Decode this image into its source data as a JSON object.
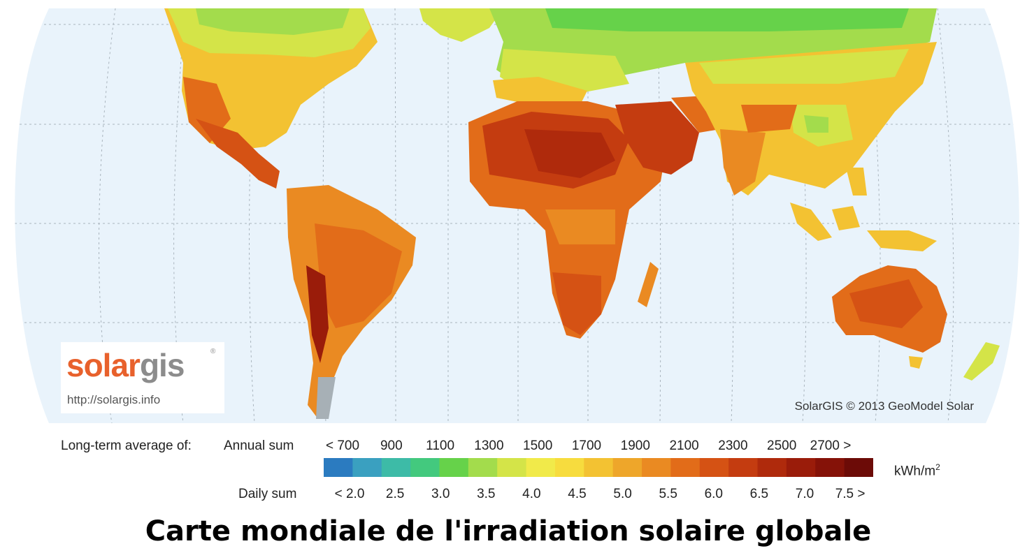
{
  "title": "Carte mondiale de l'irradiation solaire globale",
  "logo": {
    "brand_a": "solar",
    "brand_b": "gis",
    "registered": "®",
    "url": "http://solargis.info"
  },
  "credit": "SolarGIS © 2013 GeoModel Solar",
  "legend": {
    "prefix": "Long-term average of:",
    "annual_label": "Annual sum",
    "daily_label": "Daily sum",
    "unit": "kWh/m",
    "unit_sup": "2",
    "annual_ticks": [
      "< 700",
      "900",
      "1100",
      "1300",
      "1500",
      "1700",
      "1900",
      "2100",
      "2300",
      "2500",
      "2700 >"
    ],
    "daily_ticks": [
      "< 2.0",
      "2.5",
      "3.0",
      "3.5",
      "4.0",
      "4.5",
      "5.0",
      "5.5",
      "6.0",
      "6.5",
      "7.0",
      "7.5 >"
    ],
    "colors": [
      "#2b7bc0",
      "#3aa0c0",
      "#3dbba7",
      "#43c97e",
      "#66d24a",
      "#a3dc4c",
      "#d4e448",
      "#f1ea4a",
      "#f7dc3e",
      "#f3c232",
      "#eea62a",
      "#ea8a22",
      "#e26c19",
      "#d55214",
      "#c43c10",
      "#af2a0c",
      "#9a1c0a",
      "#851208",
      "#6c0b07"
    ]
  }
}
